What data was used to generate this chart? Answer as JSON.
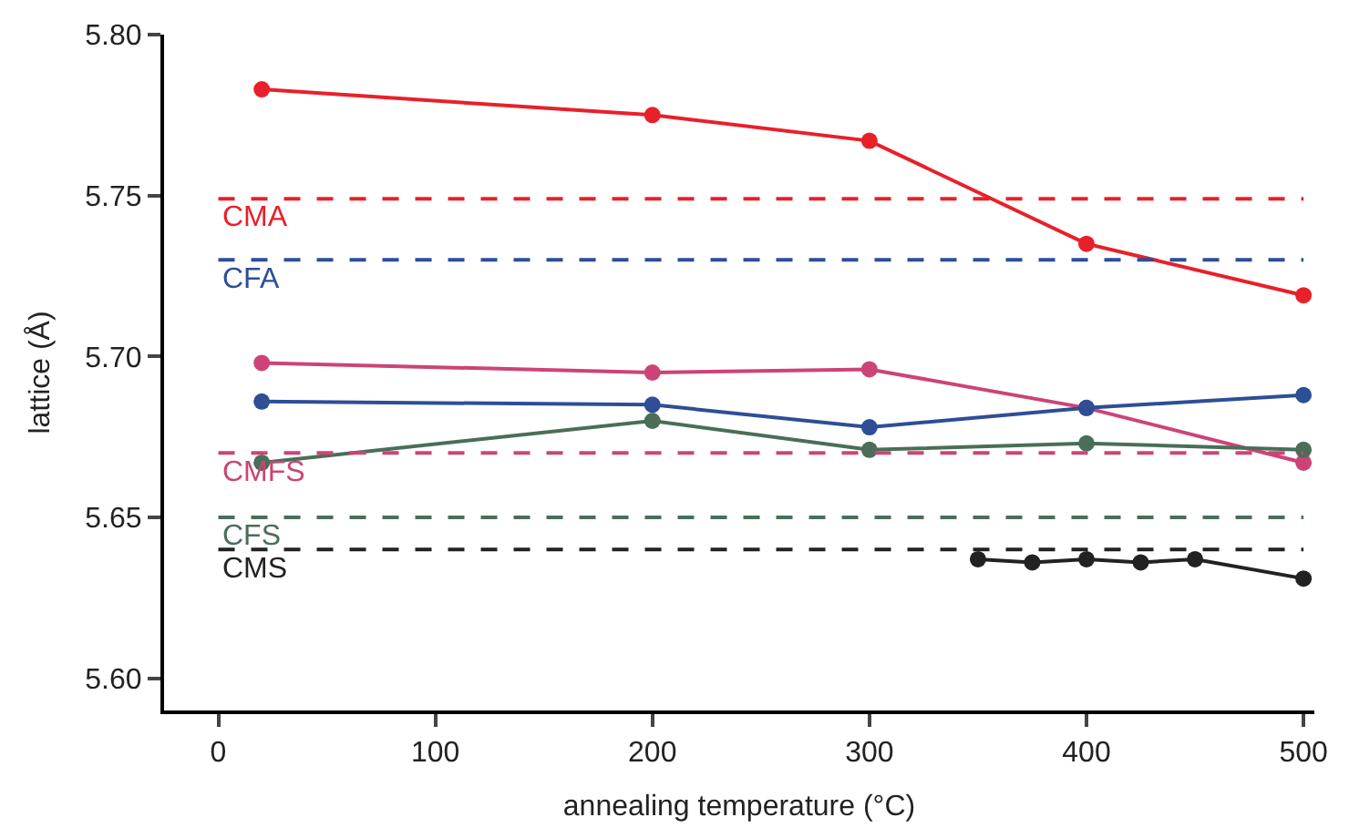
{
  "chart_data": {
    "type": "line",
    "xlabel": "annealing temperature (°C)",
    "ylabel": "lattice (Å)",
    "xlim": [
      -25,
      505
    ],
    "ylim": [
      5.59,
      5.8
    ],
    "xticks": [
      0,
      100,
      200,
      300,
      400,
      500
    ],
    "yticks": [
      {
        "value": 5.6,
        "label": "5.60"
      },
      5.65,
      {
        "value": 5.7,
        "label": "5.70"
      },
      5.75,
      {
        "value": 5.8,
        "label": "5.80"
      }
    ],
    "legend": false,
    "marker": "circle",
    "line_style": "solid",
    "series": [
      {
        "color": "#e8202a",
        "x": [
          20,
          200,
          300,
          400,
          500
        ],
        "values": [
          5.783,
          5.775,
          5.767,
          5.735,
          5.719
        ]
      },
      {
        "color": "#cc4477",
        "x": [
          20,
          200,
          300,
          400,
          500
        ],
        "values": [
          5.698,
          5.695,
          5.696,
          5.684,
          5.667
        ]
      },
      {
        "color": "#2e4e96",
        "x": [
          20,
          200,
          300,
          400,
          500
        ],
        "values": [
          5.686,
          5.685,
          5.678,
          5.684,
          5.688
        ]
      },
      {
        "color": "#4a6e58",
        "x": [
          20,
          200,
          300,
          400,
          500
        ],
        "values": [
          5.667,
          5.68,
          5.671,
          5.673,
          5.671
        ]
      },
      {
        "color": "#222222",
        "x": [
          350,
          375,
          400,
          425,
          450,
          500
        ],
        "values": [
          5.637,
          5.636,
          5.637,
          5.636,
          5.637,
          5.631
        ]
      }
    ],
    "ref_lines": [
      {
        "axis": "y",
        "value": 5.749,
        "label": "CMA",
        "color": "#e8202a",
        "line_style": "dashed"
      },
      {
        "axis": "y",
        "value": 5.73,
        "label": "CFA",
        "color": "#2e4e96",
        "line_style": "dashed"
      },
      {
        "axis": "y",
        "value": 5.67,
        "label": "CMFS",
        "color": "#cc4477",
        "line_style": "dashed"
      },
      {
        "axis": "y",
        "value": 5.65,
        "label": "CFS",
        "color": "#4a6e58",
        "line_style": "dashed"
      },
      {
        "axis": "y",
        "value": 5.64,
        "label": "CMS",
        "color": "#222222",
        "line_style": "dashed"
      }
    ]
  }
}
